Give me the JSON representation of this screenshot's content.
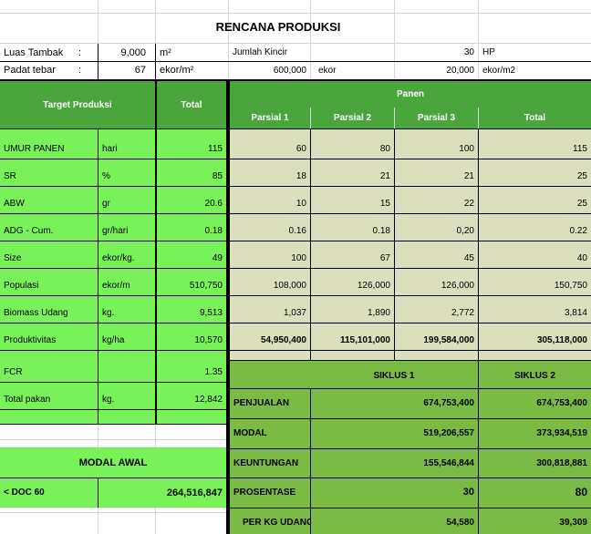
{
  "title": "RENCANA PRODUKSI",
  "header_rows": [
    {
      "label": "Luas Tambak",
      "colon": ":",
      "value": "9,000",
      "unit": "m²",
      "label2": "Jumlah Kincir",
      "value2": "30",
      "unit2": "HP"
    },
    {
      "label": "Padat tebar",
      "colon": ":",
      "value": "67",
      "unit": "ekor/m²",
      "value_mid": "600,000",
      "unit_mid": "ekor",
      "value2": "20,000",
      "unit2": "ekor/m2"
    }
  ],
  "table_headers": {
    "target": "Target Produksi",
    "total": "Total",
    "panen": "Panen",
    "parsial1": "Parsial 1",
    "parsial2": "Parsial 2",
    "parsial3": "Parsial 3",
    "total2": "Total"
  },
  "rows": [
    {
      "name": "UMUR PANEN",
      "unit": "hari",
      "total": "115",
      "p1": "60",
      "p2": "80",
      "p3": "100",
      "t": "115"
    },
    {
      "name": "SR",
      "unit": "%",
      "total": "85",
      "p1": "18",
      "p2": "21",
      "p3": "21",
      "t": "25"
    },
    {
      "name": "ABW",
      "unit": "gr",
      "total": "20.6",
      "p1": "10",
      "p2": "15",
      "p3": "22",
      "t": "25"
    },
    {
      "name": "ADG - Cum.",
      "unit": "gr/hari",
      "total": "0.18",
      "p1": "0.16",
      "p2": "0.18",
      "p3": "0,20",
      "t": "0.22"
    },
    {
      "name": "Size",
      "unit": "ekor/kg.",
      "total": "49",
      "p1": "100",
      "p2": "67",
      "p3": "45",
      "t": "40"
    },
    {
      "name": "Populasi",
      "unit": "ekor/m",
      "total": "510,750",
      "p1": "108,000",
      "p2": "126,000",
      "p3": "126,000",
      "t": "150,750"
    },
    {
      "name": "Biomass Udang",
      "unit": "kg.",
      "total": "9,513",
      "p1": "1,037",
      "p2": "1,890",
      "p3": "2,772",
      "t": "3,814"
    },
    {
      "name": "Produktivitas",
      "unit": "kg/ha",
      "total": "10,570",
      "p1": "54,950,400",
      "p2": "115,101,000",
      "p3": "199,584,000",
      "t": "305,118,000"
    },
    {
      "name": "FCR",
      "unit": "",
      "total": "1.35"
    },
    {
      "name": "Total pakan",
      "unit": "kg.",
      "total": "12,842"
    }
  ],
  "siklus": {
    "s1": "SIKLUS 1",
    "s2": "SIKLUS 2"
  },
  "finance": [
    {
      "label": "PENJUALAN",
      "s1": "674,753,400",
      "s2": "674,753,400"
    },
    {
      "label": "MODAL",
      "s1": "519,206,557",
      "s2": "373,934,519"
    },
    {
      "label": "KEUNTUNGAN",
      "s1": "155,546,844",
      "s2": "300,818,881"
    },
    {
      "label": "PROSENTASE",
      "s1": "30",
      "s2": "80"
    },
    {
      "label": "PER KG UDANG",
      "s1": "54,580",
      "s2": "39,309"
    }
  ],
  "modal_awal": {
    "title": "MODAL AWAL",
    "label": "< DOC 60",
    "value": "264,516,847"
  }
}
